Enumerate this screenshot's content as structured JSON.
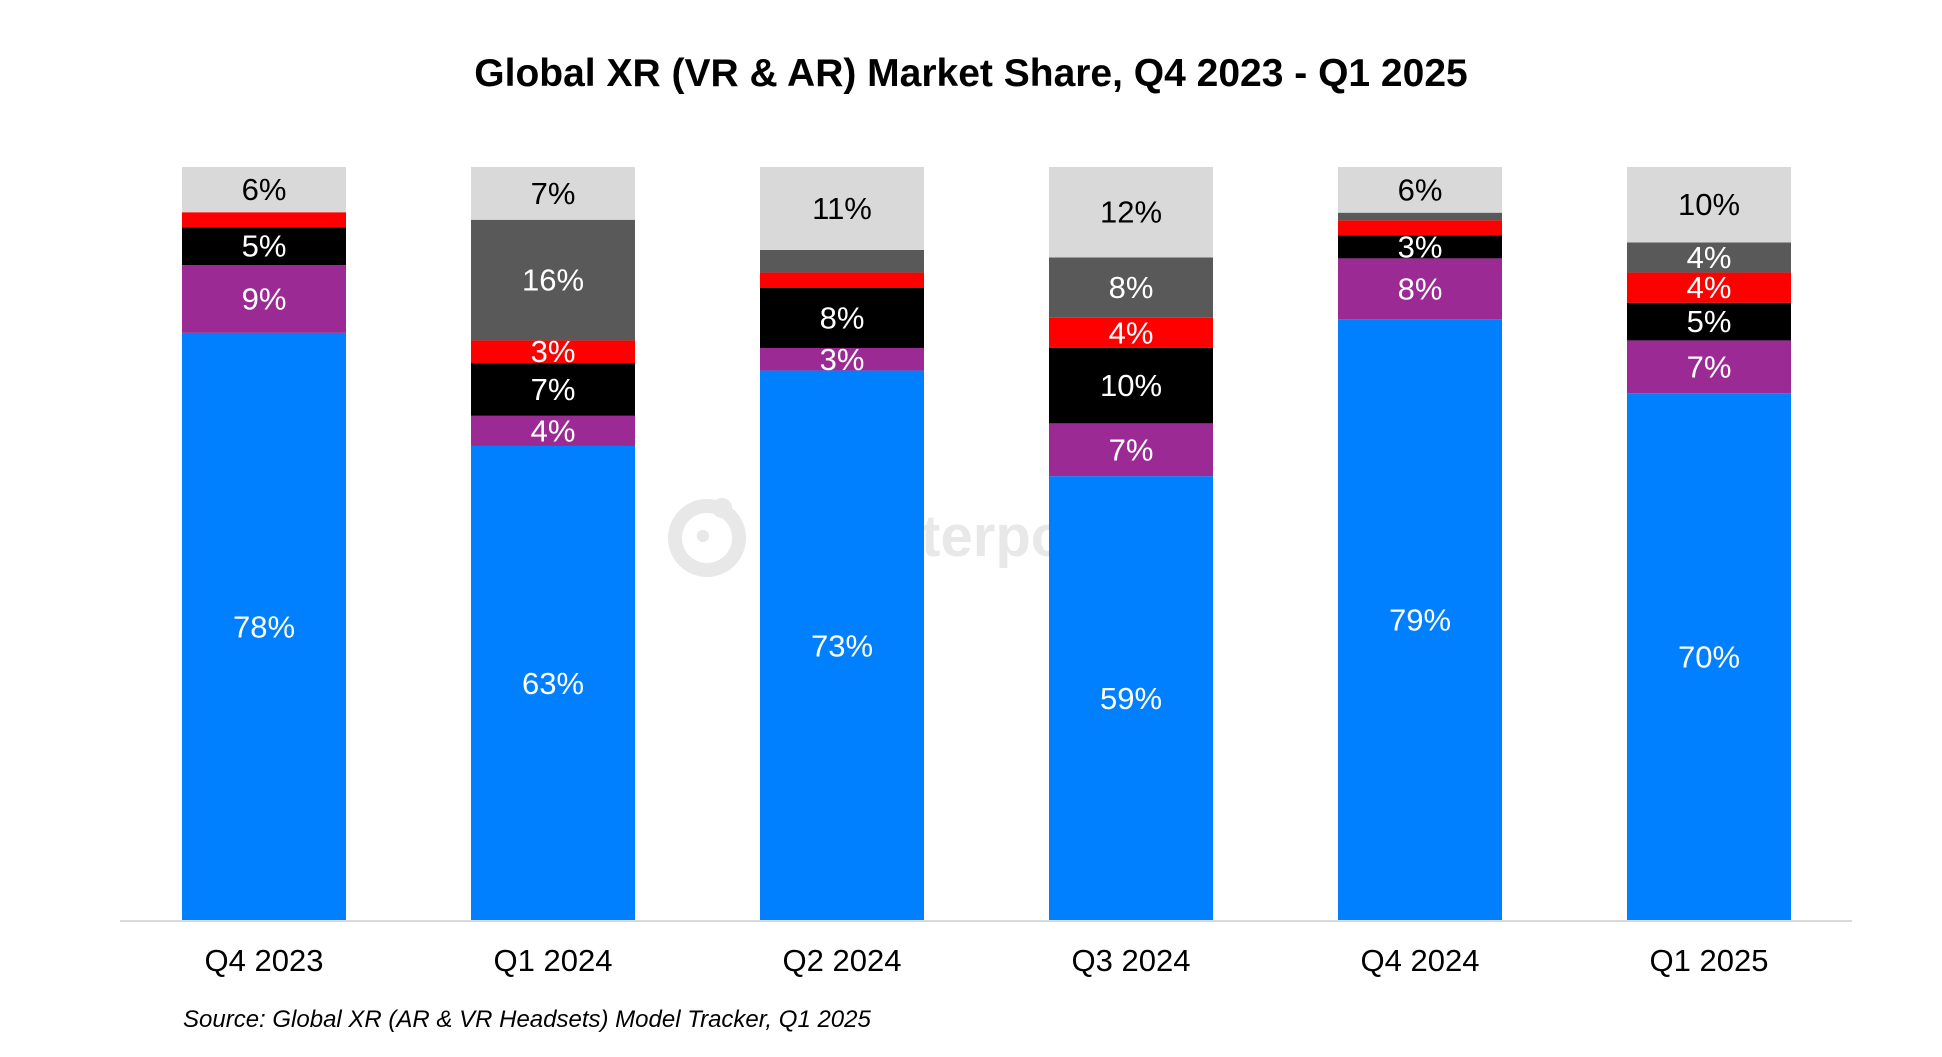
{
  "chart_data": {
    "type": "bar",
    "stacked": true,
    "title": "Global XR (VR & AR) Market Share, Q4 2023 - Q1 2025",
    "xlabel": "",
    "ylabel": "",
    "ylim": [
      0,
      100
    ],
    "categories": [
      "Q4 2023",
      "Q1 2024",
      "Q2 2024",
      "Q3 2024",
      "Q4 2024",
      "Q1 2025"
    ],
    "series": [
      {
        "color": "#0080ff",
        "label_color": "#ffffff",
        "values": [
          78,
          63,
          73,
          59,
          79,
          70
        ],
        "labels": [
          "78%",
          "63%",
          "73%",
          "59%",
          "79%",
          "70%"
        ]
      },
      {
        "color": "#9c2a94",
        "label_color": "#ffffff",
        "values": [
          9,
          4,
          3,
          7,
          8,
          7
        ],
        "labels": [
          "9%",
          "4%",
          "3%",
          "7%",
          "8%",
          "7%"
        ]
      },
      {
        "color": "#000000",
        "label_color": "#ffffff",
        "values": [
          5,
          7,
          8,
          10,
          3,
          5
        ],
        "labels": [
          "5%",
          "7%",
          "8%",
          "10%",
          "3%",
          "5%"
        ]
      },
      {
        "color": "#ff0000",
        "label_color": "#ffffff",
        "values": [
          2,
          3,
          2,
          4,
          2,
          4
        ],
        "labels": [
          "",
          "3%",
          "",
          "4%",
          "",
          "4%"
        ]
      },
      {
        "color": "#595959",
        "label_color": "#ffffff",
        "values": [
          0,
          16,
          3,
          8,
          1,
          4
        ],
        "labels": [
          "",
          "16%",
          "",
          "8%",
          "",
          "4%"
        ]
      },
      {
        "color": "#d9d9d9",
        "label_color": "#000000",
        "values": [
          6,
          7,
          11,
          12,
          6,
          10
        ],
        "labels": [
          "6%",
          "7%",
          "11%",
          "12%",
          "6%",
          "10%"
        ]
      }
    ],
    "grid": false,
    "legend": "none"
  },
  "source_note": "Source: Global XR (AR & VR Headsets) Model Tracker, Q1 2025",
  "watermark": {
    "text": "Counterpoint",
    "icon": "counterpoint-logo-icon"
  }
}
